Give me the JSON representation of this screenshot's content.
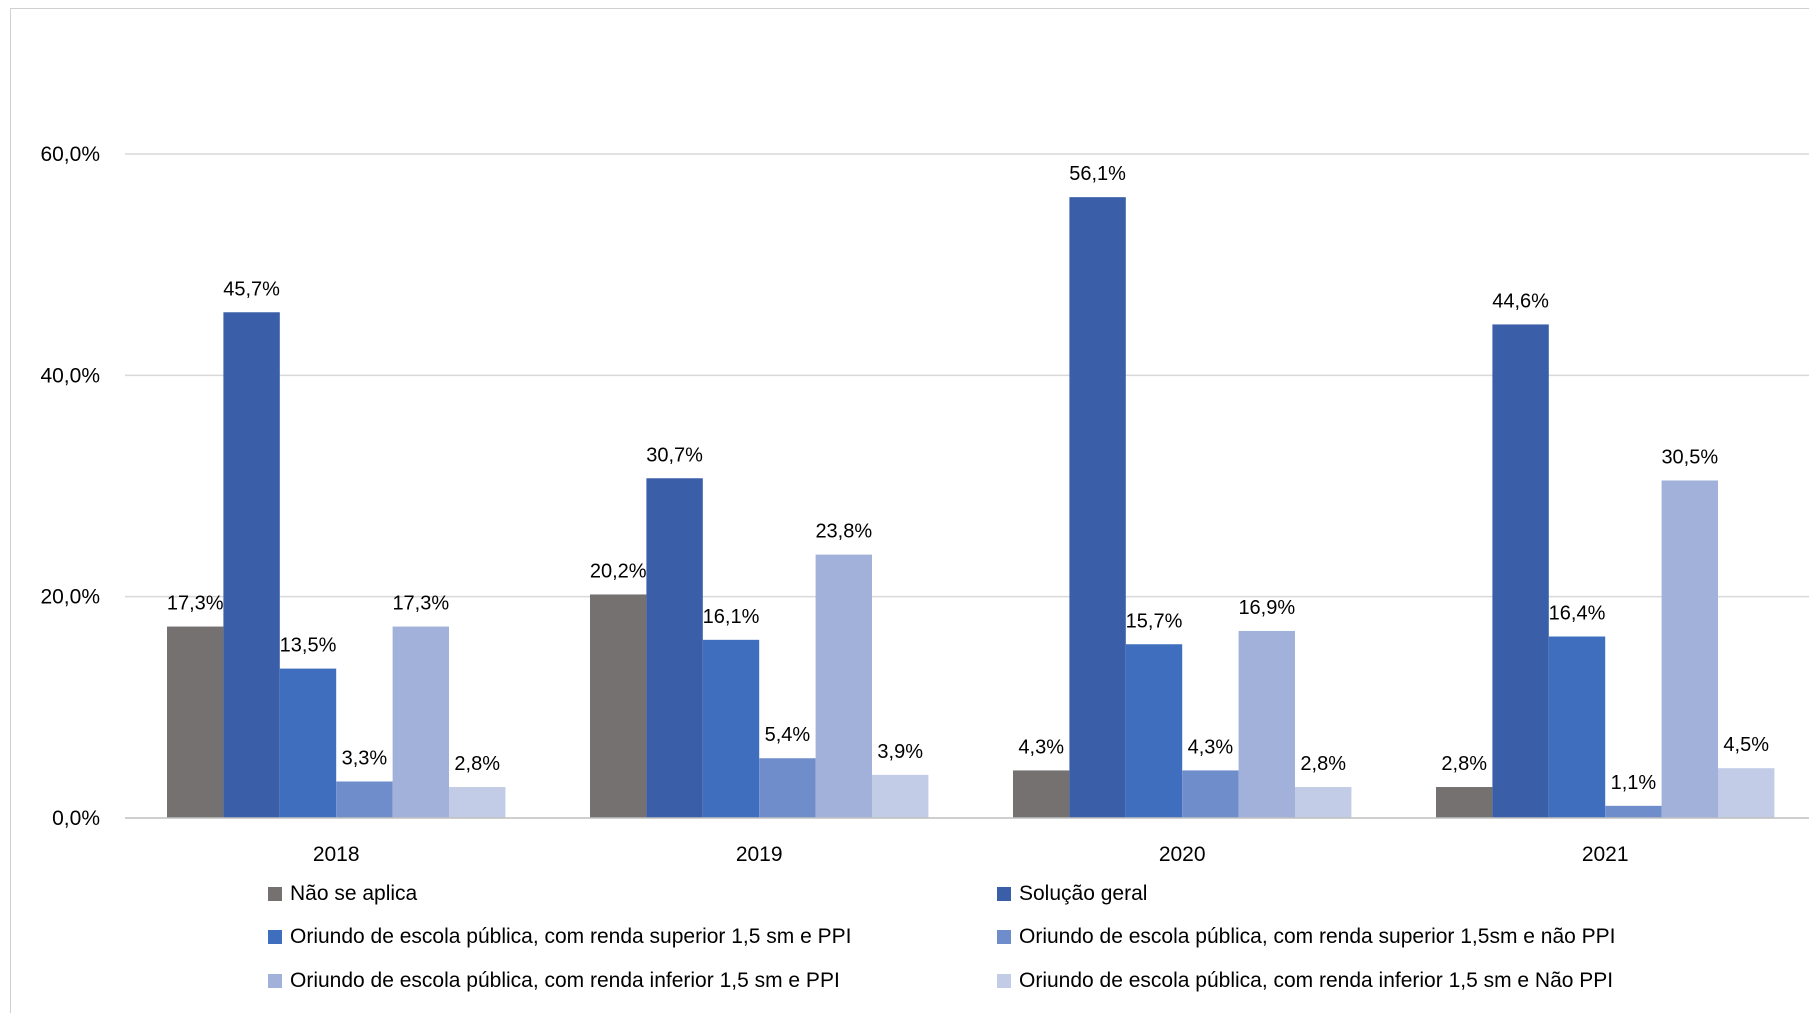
{
  "chart_data": {
    "type": "bar",
    "title": "",
    "xlabel": "",
    "ylabel": "",
    "categories": [
      "2018",
      "2019",
      "2020",
      "2021"
    ],
    "ylim": [
      0,
      60
    ],
    "yticks": [
      "0,0%",
      "20,0%",
      "40,0%",
      "60,0%"
    ],
    "ytick_values": [
      0,
      20,
      40,
      60
    ],
    "grid": "horizontal",
    "legend_position": "bottom",
    "series": [
      {
        "name": "Não se aplica",
        "color": "#767171",
        "values": [
          17.3,
          20.2,
          4.3,
          2.8
        ],
        "labels": [
          "17,3%",
          "20,2%",
          "4,3%",
          "2,8%"
        ]
      },
      {
        "name": "Solução geral",
        "color": "#3A5FA8",
        "values": [
          45.7,
          30.7,
          56.1,
          44.6
        ],
        "labels": [
          "45,7%",
          "30,7%",
          "56,1%",
          "44,6%"
        ]
      },
      {
        "name": "Oriundo de escola pública, com renda superior 1,5 sm e  PPI",
        "color": "#3E6EBD",
        "values": [
          13.5,
          16.1,
          15.7,
          16.4
        ],
        "labels": [
          "13,5%",
          "16,1%",
          "15,7%",
          "16,4%"
        ]
      },
      {
        "name": "Oriundo de escola pública, com renda superior 1,5sm e não PPI",
        "color": "#6F8DCA",
        "values": [
          3.3,
          5.4,
          4.3,
          1.1
        ],
        "labels": [
          "3,3%",
          "5,4%",
          "4,3%",
          "1,1%"
        ]
      },
      {
        "name": "Oriundo de escola pública, com renda inferior 1,5 sm e PPI",
        "color": "#A1B1D9",
        "values": [
          17.3,
          23.8,
          16.9,
          30.5
        ],
        "labels": [
          "17,3%",
          "23,8%",
          "16,9%",
          "30,5%"
        ]
      },
      {
        "name": "Oriundo de escola pública, com renda inferior 1,5 sm e Não PPI",
        "color": "#C3CCE6",
        "values": [
          2.8,
          3.9,
          2.8,
          4.5
        ],
        "labels": [
          "2,8%",
          "3,9%",
          "2,8%",
          "4,5%"
        ]
      }
    ]
  },
  "legend": {
    "items": [
      "Não se aplica",
      "Solução geral",
      "Oriundo de escola pública, com renda superior 1,5 sm e  PPI",
      "Oriundo de escola pública, com renda superior 1,5sm e não PPI",
      "Oriundo de escola pública, com renda inferior 1,5 sm e PPI",
      "Oriundo de escola pública, com renda inferior 1,5 sm e Não PPI"
    ]
  }
}
